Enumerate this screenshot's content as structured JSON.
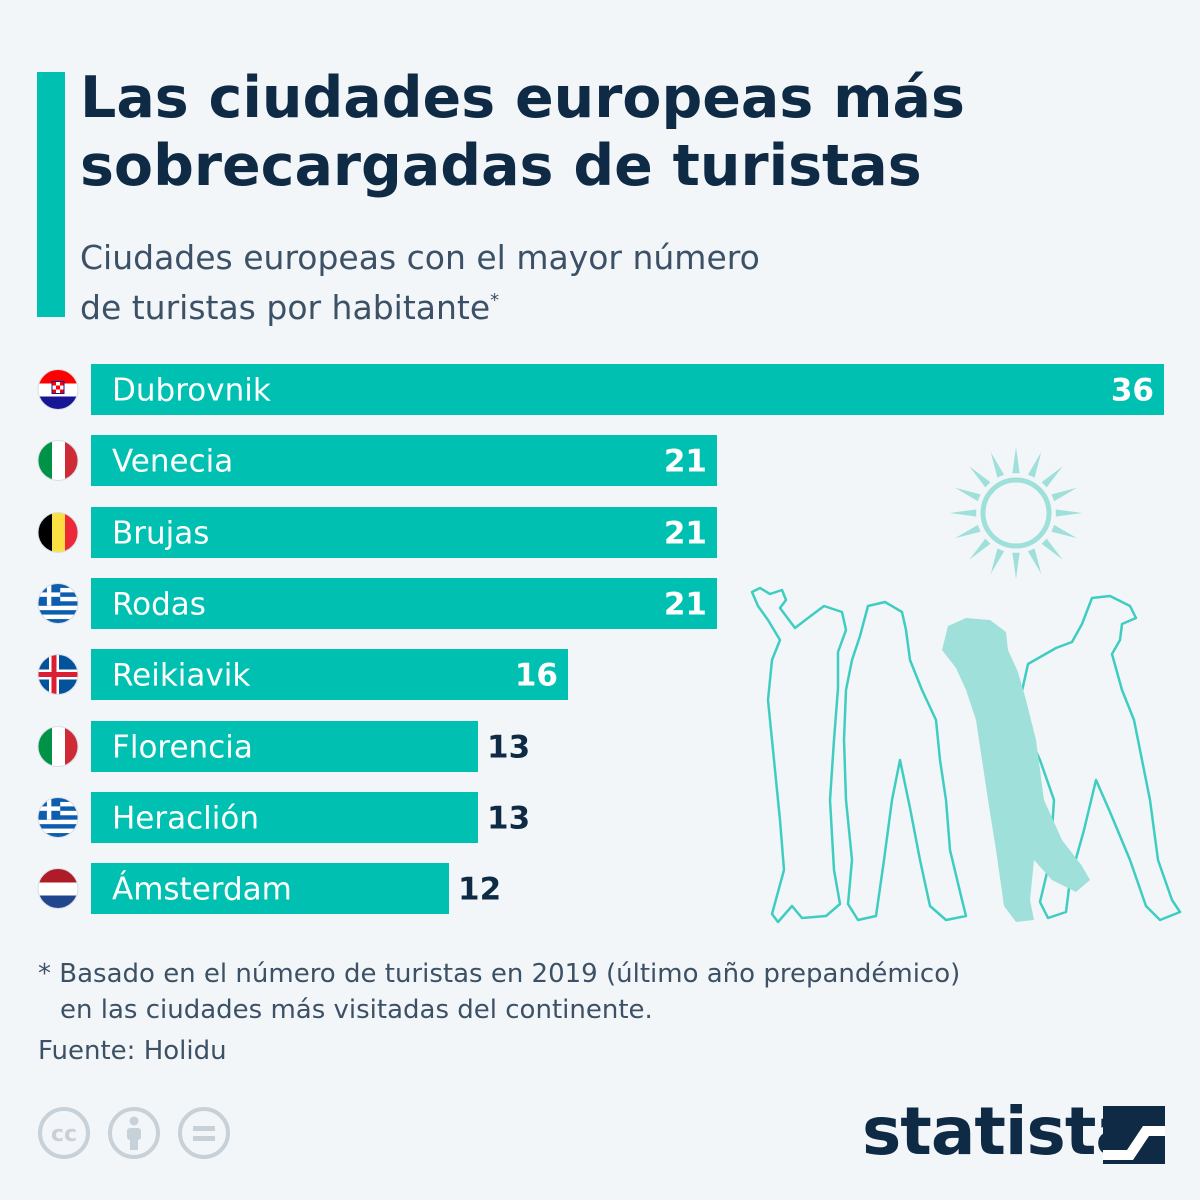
{
  "header": {
    "title_line1": "Las ciudades europeas más",
    "title_line2": "sobrecargadas de turistas",
    "subtitle_line1": "Ciudades europeas con el mayor número",
    "subtitle_line2": "de turistas por habitante",
    "subtitle_mark": "*"
  },
  "chart_data": {
    "type": "bar",
    "orientation": "horizontal",
    "title": "Las ciudades europeas más sobrecargadas de turistas",
    "subtitle": "Ciudades europeas con el mayor número de turistas por habitante*",
    "xlabel": "",
    "ylabel": "",
    "xlim": [
      0,
      36
    ],
    "categories": [
      "Dubrovnik",
      "Venecia",
      "Brujas",
      "Rodas",
      "Reikiavik",
      "Florencia",
      "Heraclión",
      "Ámsterdam"
    ],
    "values": [
      36,
      21,
      21,
      21,
      16,
      13,
      13,
      12
    ],
    "flags": [
      "croatia",
      "italy",
      "belgium",
      "greece",
      "iceland",
      "italy",
      "greece",
      "netherlands"
    ]
  },
  "footer": {
    "footnote_line1": "* Basado en el número de turistas en 2019 (último año prepandémico)",
    "footnote_line2": "en las ciudades más visitadas del continente.",
    "source": "Fuente: Holidu",
    "brand": "statista"
  },
  "icons": [
    "cc-icon",
    "attribution-icon",
    "no-derivatives-icon",
    "sun-icon",
    "tourists-illustration"
  ],
  "colors": {
    "accent": "#00c1b1",
    "title": "#0f2a44",
    "text": "#3d5166",
    "background": "#f2f6f9",
    "illustration": "#9fe0da"
  }
}
